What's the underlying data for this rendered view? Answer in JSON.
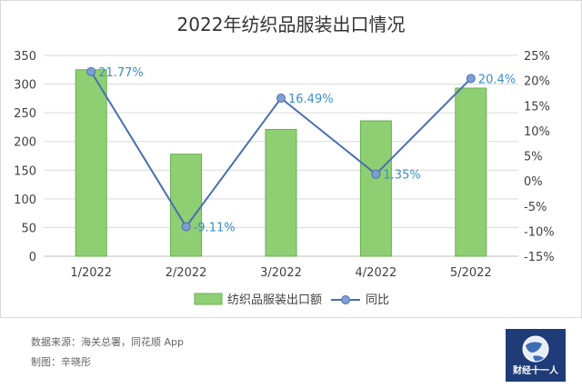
{
  "chart_data": {
    "type": "bar+line",
    "title": "2022年纺织品服装出口情况",
    "categories": [
      "1/2022",
      "2/2022",
      "3/2022",
      "4/2022",
      "5/2022"
    ],
    "series": [
      {
        "name": "纺织品服装出口额",
        "type": "bar",
        "axis": "left",
        "values": [
          325,
          178,
          221,
          236,
          293
        ],
        "color": "#8fcf73"
      },
      {
        "name": "同比",
        "type": "line",
        "axis": "right",
        "values": [
          21.77,
          -9.11,
          16.49,
          1.35,
          20.4
        ],
        "color": "#4a6fb0",
        "labels": [
          "21.77%",
          "-9.11%",
          "16.49%",
          "1.35%",
          "20.4%"
        ]
      }
    ],
    "y_left": {
      "min": 0,
      "max": 350,
      "step": 50,
      "ticks": [
        "0",
        "50",
        "100",
        "150",
        "200",
        "250",
        "300",
        "350"
      ]
    },
    "y_right": {
      "min": -15,
      "max": 25,
      "step": 5,
      "ticks": [
        "-15%",
        "-10%",
        "-5%",
        "0%",
        "5%",
        "10%",
        "15%",
        "20%",
        "25%"
      ]
    },
    "grid": true,
    "legend": "bottom",
    "label_color": "#3a8fc9"
  },
  "footer": {
    "source": "数据来源：海关总署，同花顺 App",
    "author": "制图：辛晓彤",
    "logo_text": "财经十一人"
  }
}
